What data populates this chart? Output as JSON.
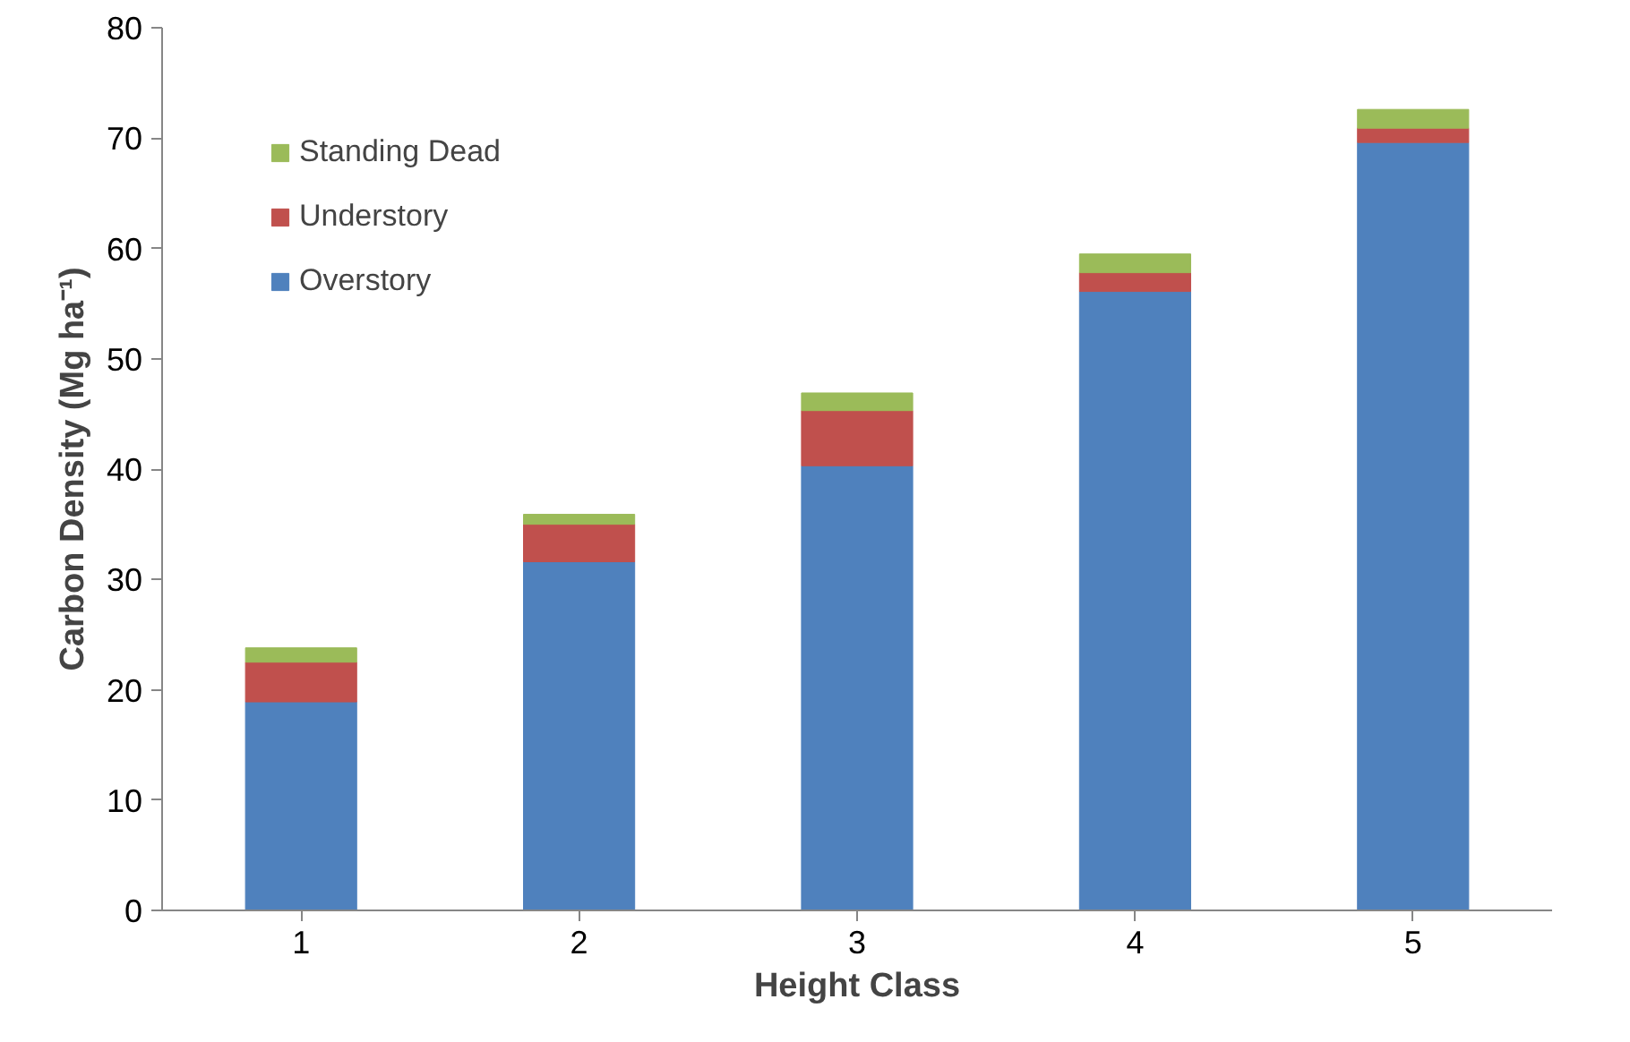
{
  "chart_data": {
    "type": "bar",
    "stacked": true,
    "xlabel": "Height Class",
    "ylabel": "Carbon Density (Mg ha⁻¹)",
    "categories": [
      "1",
      "2",
      "3",
      "4",
      "5"
    ],
    "series": [
      {
        "name": "Overstory",
        "color": "#4f81bd",
        "values": [
          18.9,
          31.6,
          40.3,
          56.1,
          69.6
        ]
      },
      {
        "name": "Understory",
        "color": "#c0504d",
        "values": [
          3.6,
          3.4,
          5.0,
          1.7,
          1.3
        ]
      },
      {
        "name": "Standing Dead",
        "color": "#9bbb59",
        "values": [
          1.3,
          0.9,
          1.6,
          1.7,
          1.7
        ]
      }
    ],
    "ylim": [
      0,
      80
    ],
    "yticks": [
      0,
      10,
      20,
      30,
      40,
      50,
      60,
      70,
      80
    ],
    "grid": false,
    "legend": "top left"
  }
}
